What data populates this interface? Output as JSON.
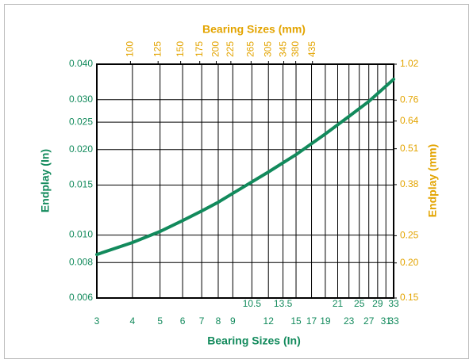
{
  "chart_data": {
    "type": "line",
    "title": "Bearing Sizes (mm)",
    "xlabel": "Bearing Sizes (In)",
    "ylabel": "Endplay (In)",
    "y2label": "Endplay (mm)",
    "x_log": true,
    "y_log": true,
    "grid": true,
    "xlim": [
      3,
      33
    ],
    "xticks": [
      3,
      4,
      5,
      6,
      7,
      8,
      9,
      12,
      15,
      17,
      19,
      23,
      27,
      31,
      33
    ],
    "xticks_upper": [
      10.5,
      13.5,
      21,
      25,
      29,
      33
    ],
    "x2lim": [
      76.2,
      838.2
    ],
    "x2ticks": [
      100,
      125,
      150,
      175,
      200,
      225,
      265,
      305,
      345,
      380,
      435
    ],
    "ylim": [
      0.006,
      0.04
    ],
    "yticks": [
      0.006,
      0.008,
      {
        "value": 0.01,
        "label": "0.010"
      },
      0.015,
      {
        "value": 0.02,
        "label": "0.020"
      },
      0.025,
      {
        "value": 0.03,
        "label": "0.030"
      },
      {
        "value": 0.04,
        "label": "0.040"
      }
    ],
    "y2lim": [
      0.15,
      1.02
    ],
    "y2ticks": [
      0.15,
      {
        "value": 0.2,
        "label": "0.20"
      },
      0.25,
      0.38,
      0.51,
      0.64,
      0.76,
      1.02
    ],
    "x": [
      3,
      4,
      5,
      6,
      7,
      8,
      9,
      12,
      15,
      19,
      23,
      27,
      33
    ],
    "series": [
      {
        "color": "#128a5c",
        "values": [
          0.00854,
          0.00941,
          0.0103,
          0.01125,
          0.01216,
          0.01306,
          0.01403,
          0.01668,
          0.01921,
          0.02272,
          0.02619,
          0.02956,
          0.03541
        ]
      }
    ]
  }
}
